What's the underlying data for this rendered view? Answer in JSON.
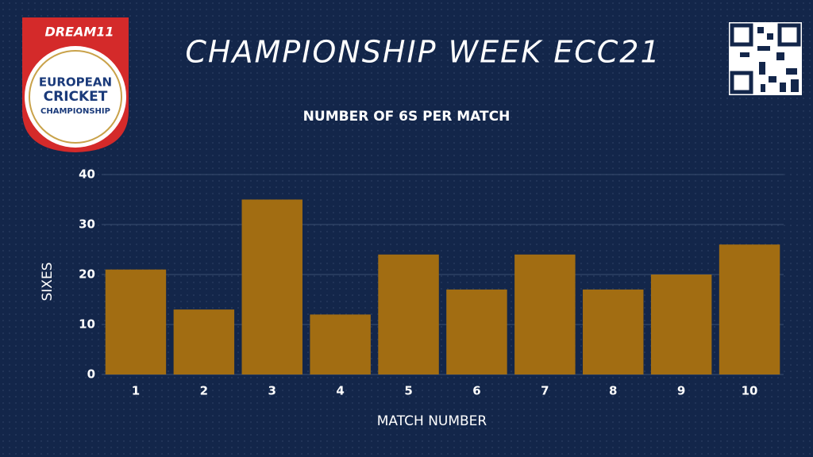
{
  "chart_data": {
    "type": "bar",
    "title": "CHAMPIONSHIP WEEK ECC21",
    "subtitle": "NUMBER OF 6S PER MATCH",
    "x_label": "MATCH NUMBER",
    "y_label": "SIXES",
    "categories": [
      "1",
      "2",
      "3",
      "4",
      "5",
      "6",
      "7",
      "8",
      "9",
      "10"
    ],
    "values": [
      21,
      13,
      35,
      12,
      24,
      17,
      24,
      17,
      20,
      26
    ],
    "color": "#a26d12",
    "ylim": [
      0,
      40
    ],
    "yticks": [
      0,
      10,
      20,
      30,
      40
    ],
    "grid": true
  },
  "logo": {
    "brand": "DREAM11",
    "lines": [
      "EUROPEAN",
      "CRICKET",
      "CHAMPIONSHIP"
    ]
  }
}
